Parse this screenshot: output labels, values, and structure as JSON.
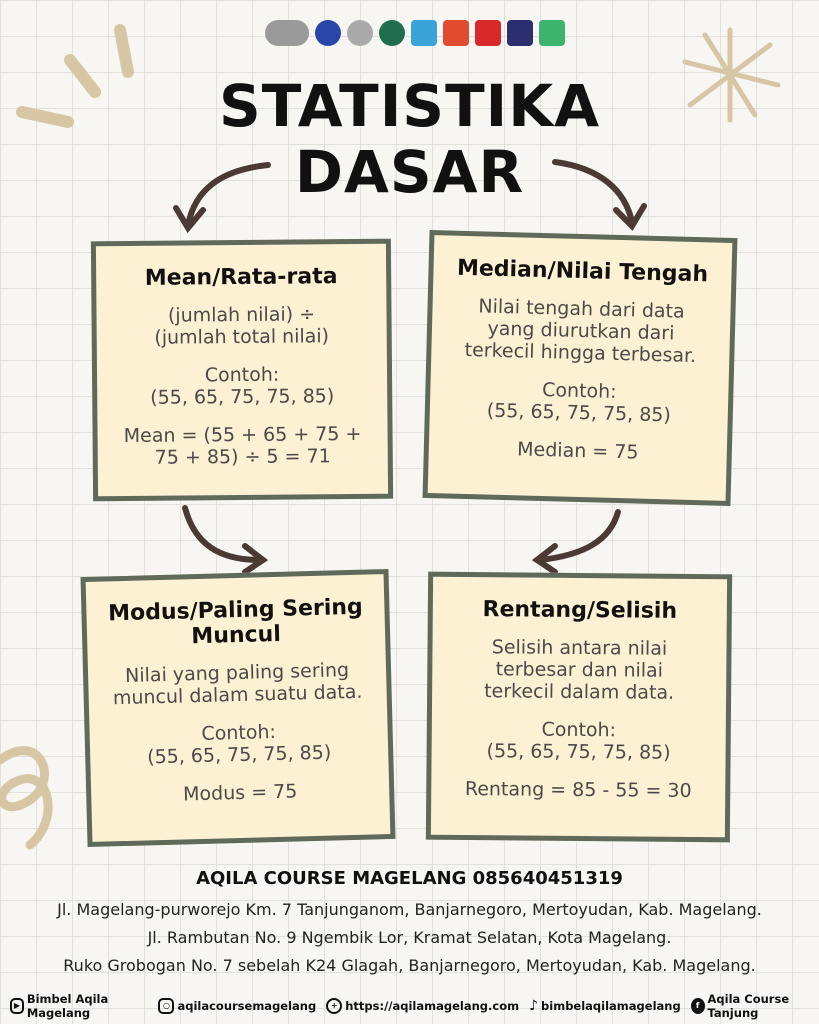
{
  "header": {
    "title_line1": "STATISTIKA",
    "title_line2": "DASAR"
  },
  "colors": {
    "card_fill": "#fdf1d3",
    "card_border": "#5f6a5b",
    "arrow": "#4a3a33",
    "decor": "#d6c6a4"
  },
  "logos": [
    "aqila-course-logo",
    "partner-logo-blue",
    "partner-logo-gray",
    "partner-logo-green",
    "partner-logo-spiral",
    "partner-logo-ad",
    "partner-logo-red",
    "partner-logo-clock",
    "partner-logo-colorful"
  ],
  "cards": [
    {
      "title": "Mean/Rata-rata",
      "desc": "(jumlah nilai) ÷ (jumlah total nilai)",
      "example_label": "Contoh:",
      "example": "(55, 65, 75, 75, 85)",
      "result": "Mean = (55 + 65 + 75 + 75 + 85) ÷ 5 = 71"
    },
    {
      "title": "Median/Nilai Tengah",
      "desc": "Nilai tengah dari data yang diurutkan dari terkecil hingga terbesar.",
      "example_label": "Contoh:",
      "example": "(55, 65, 75, 75, 85)",
      "result": "Median = 75"
    },
    {
      "title": "Modus/Paling Sering Muncul",
      "desc": "Nilai yang paling sering muncul dalam suatu data.",
      "example_label": "Contoh:",
      "example": "(55, 65, 75, 75, 85)",
      "result": "Modus = 75"
    },
    {
      "title": "Rentang/Selisih",
      "desc": "Selisih antara nilai terbesar dan nilai terkecil dalam data.",
      "example_label": "Contoh:",
      "example": "(55, 65, 75, 75, 85)",
      "result": "Rentang = 85 - 55 = 30"
    }
  ],
  "footer": {
    "title": "AQILA COURSE MAGELANG 085640451319",
    "addresses": [
      "Jl. Magelang-purworejo Km. 7 Tanjunganom, Banjarnegoro, Mertoyudan, Kab. Magelang.",
      "Jl. Rambutan No. 9 Ngembik Lor, Kramat Selatan, Kota Magelang.",
      "Ruko Grobogan No. 7 sebelah K24 Glagah, Banjarnegoro, Mertoyudan, Kab. Magelang."
    ],
    "social": [
      {
        "icon": "youtube-icon",
        "label": "Bimbel Aqila Magelang"
      },
      {
        "icon": "instagram-icon",
        "label": "aqilacoursemagelang"
      },
      {
        "icon": "globe-icon",
        "label": "https://aqilamagelang.com"
      },
      {
        "icon": "tiktok-icon",
        "label": "bimbelaqilamagelang"
      },
      {
        "icon": "facebook-icon",
        "label": "Aqila Course Tanjung"
      }
    ]
  }
}
